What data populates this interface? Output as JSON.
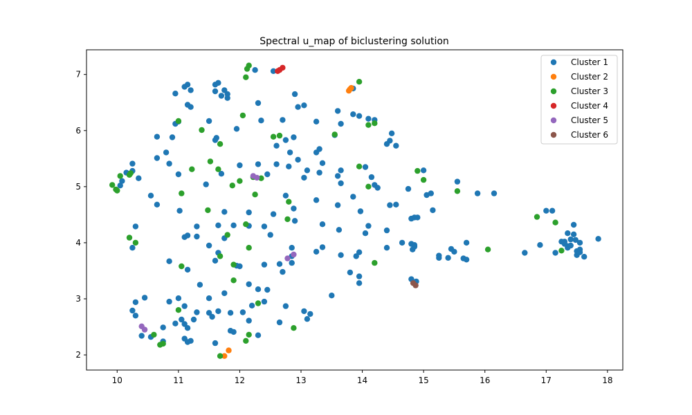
{
  "chart_data": {
    "type": "scatter",
    "title": "Spectral u_map of biclustering solution",
    "xlabel": "",
    "ylabel": "",
    "xlim": [
      9.5,
      18.25
    ],
    "ylim": [
      1.73,
      7.44
    ],
    "xticks": [
      10,
      11,
      12,
      13,
      14,
      15,
      16,
      17,
      18
    ],
    "yticks": [
      2,
      3,
      4,
      5,
      6,
      7
    ],
    "grid": false,
    "legend": "top-right",
    "series": [
      {
        "name": "Cluster 1",
        "color": "#1f77b4",
        "points": [
          [
            11.1,
            6.78
          ],
          [
            11.15,
            6.82
          ],
          [
            11.2,
            6.72
          ],
          [
            11.15,
            6.46
          ],
          [
            11.2,
            6.42
          ],
          [
            10.95,
            6.66
          ],
          [
            11.6,
            6.82
          ],
          [
            11.6,
            6.7
          ],
          [
            11.65,
            6.85
          ],
          [
            11.75,
            6.72
          ],
          [
            11.8,
            6.65
          ],
          [
            11.7,
            6.62
          ],
          [
            11.8,
            6.58
          ],
          [
            12.25,
            7.08
          ],
          [
            12.55,
            7.06
          ],
          [
            12.9,
            6.65
          ],
          [
            12.3,
            6.49
          ],
          [
            13.05,
            6.45
          ],
          [
            12.95,
            6.42
          ],
          [
            13.25,
            6.16
          ],
          [
            11.5,
            6.17
          ],
          [
            11.95,
            6.03
          ],
          [
            12.35,
            6.18
          ],
          [
            12.7,
            6.19
          ],
          [
            11.62,
            5.87
          ],
          [
            11.6,
            5.83
          ],
          [
            10.65,
            5.89
          ],
          [
            10.9,
            5.88
          ],
          [
            10.8,
            5.61
          ],
          [
            11.0,
            6.16
          ],
          [
            10.95,
            6.12
          ],
          [
            10.25,
            5.41
          ],
          [
            10.85,
            5.41
          ],
          [
            10.65,
            5.51
          ],
          [
            11.0,
            5.22
          ],
          [
            10.25,
            5.28
          ],
          [
            10.35,
            5.15
          ],
          [
            10.15,
            5.25
          ],
          [
            10.05,
            5.02
          ],
          [
            10.08,
            5.1
          ],
          [
            11.7,
            5.23
          ],
          [
            12.0,
            5.38
          ],
          [
            12.3,
            5.4
          ],
          [
            12.45,
            5.22
          ],
          [
            12.6,
            5.4
          ],
          [
            12.6,
            5.73
          ],
          [
            12.75,
            5.83
          ],
          [
            12.8,
            5.36
          ],
          [
            12.82,
            5.61
          ],
          [
            12.88,
            5.88
          ],
          [
            12.95,
            5.48
          ],
          [
            13.1,
            5.29
          ],
          [
            13.05,
            5.16
          ],
          [
            13.25,
            5.61
          ],
          [
            13.3,
            5.67
          ],
          [
            13.3,
            5.25
          ],
          [
            13.35,
            5.42
          ],
          [
            13.55,
            5.92
          ],
          [
            13.6,
            6.35
          ],
          [
            13.65,
            6.12
          ],
          [
            13.85,
            6.29
          ],
          [
            13.95,
            6.26
          ],
          [
            14.1,
            6.21
          ],
          [
            14.2,
            6.19
          ],
          [
            13.6,
            5.19
          ],
          [
            13.65,
            5.29
          ],
          [
            13.65,
            5.06
          ],
          [
            14.05,
            5.35
          ],
          [
            14.15,
            5.17
          ],
          [
            14.2,
            5.03
          ],
          [
            14.25,
            4.98
          ],
          [
            13.85,
            4.82
          ],
          [
            14.4,
            5.76
          ],
          [
            14.45,
            5.82
          ],
          [
            14.48,
            5.95
          ],
          [
            14.55,
            5.73
          ],
          [
            14.45,
            4.67
          ],
          [
            14.55,
            4.68
          ],
          [
            14.75,
            4.96
          ],
          [
            14.85,
            4.45
          ],
          [
            14.9,
            4.45
          ],
          [
            14.8,
            4.43
          ],
          [
            15.0,
            5.29
          ],
          [
            15.05,
            4.85
          ],
          [
            15.12,
            4.88
          ],
          [
            15.15,
            4.58
          ],
          [
            15.55,
            5.09
          ],
          [
            15.88,
            4.88
          ],
          [
            16.15,
            4.88
          ],
          [
            11.45,
            5.04
          ],
          [
            10.55,
            4.84
          ],
          [
            10.65,
            4.68
          ],
          [
            11.02,
            4.57
          ],
          [
            11.75,
            4.55
          ],
          [
            12.15,
            4.54
          ],
          [
            12.55,
            4.51
          ],
          [
            12.75,
            4.84
          ],
          [
            12.9,
            4.39
          ],
          [
            12.88,
            4.61
          ],
          [
            13.25,
            4.76
          ],
          [
            13.35,
            4.33
          ],
          [
            13.6,
            4.67
          ],
          [
            13.97,
            4.56
          ],
          [
            14.1,
            4.3
          ],
          [
            14.05,
            4.17
          ],
          [
            14.4,
            4.22
          ],
          [
            13.62,
            4.23
          ],
          [
            11.3,
            4.29
          ],
          [
            10.3,
            4.29
          ],
          [
            11.1,
            4.1
          ],
          [
            11.15,
            4.13
          ],
          [
            11.3,
            4.11
          ],
          [
            11.65,
            4.31
          ],
          [
            11.75,
            4.08
          ],
          [
            11.9,
            4.31
          ],
          [
            12.15,
            4.3
          ],
          [
            12.4,
            4.29
          ],
          [
            12.5,
            4.14
          ],
          [
            11.5,
            3.95
          ],
          [
            11.65,
            3.82
          ],
          [
            11.6,
            3.68
          ],
          [
            12.0,
            3.58
          ],
          [
            12.4,
            3.61
          ],
          [
            12.65,
            3.62
          ],
          [
            12.85,
            3.76
          ],
          [
            12.85,
            3.91
          ],
          [
            12.85,
            3.64
          ],
          [
            12.7,
            3.48
          ],
          [
            13.25,
            3.84
          ],
          [
            13.35,
            3.92
          ],
          [
            13.65,
            3.78
          ],
          [
            13.9,
            3.76
          ],
          [
            13.95,
            3.83
          ],
          [
            14.4,
            3.91
          ],
          [
            14.65,
            4.0
          ],
          [
            14.85,
            3.96
          ],
          [
            14.8,
            3.98
          ],
          [
            14.82,
            3.88
          ],
          [
            14.85,
            3.93
          ],
          [
            15.25,
            3.73
          ],
          [
            15.25,
            3.77
          ],
          [
            15.4,
            3.73
          ],
          [
            15.45,
            3.89
          ],
          [
            15.5,
            3.84
          ],
          [
            15.65,
            3.72
          ],
          [
            15.7,
            3.7
          ],
          [
            15.7,
            4.0
          ],
          [
            10.25,
            3.91
          ],
          [
            10.85,
            3.67
          ],
          [
            11.15,
            3.52
          ],
          [
            11.35,
            3.25
          ],
          [
            11.95,
            3.59
          ],
          [
            11.75,
            3.1
          ],
          [
            12.15,
            3.26
          ],
          [
            12.3,
            3.17
          ],
          [
            12.45,
            3.16
          ],
          [
            11.5,
            3.01
          ],
          [
            11.0,
            3.01
          ],
          [
            10.85,
            2.95
          ],
          [
            10.3,
            2.94
          ],
          [
            10.25,
            2.79
          ],
          [
            10.3,
            2.7
          ],
          [
            10.45,
            3.02
          ],
          [
            11.1,
            2.87
          ],
          [
            11.3,
            2.76
          ],
          [
            11.25,
            2.63
          ],
          [
            11.05,
            2.63
          ],
          [
            10.95,
            2.56
          ],
          [
            11.1,
            2.55
          ],
          [
            11.15,
            2.48
          ],
          [
            11.5,
            2.75
          ],
          [
            11.55,
            2.68
          ],
          [
            11.65,
            2.78
          ],
          [
            11.85,
            2.75
          ],
          [
            12.05,
            2.76
          ],
          [
            12.2,
            2.88
          ],
          [
            12.4,
            2.95
          ],
          [
            12.75,
            2.87
          ],
          [
            12.15,
            2.61
          ],
          [
            12.65,
            2.58
          ],
          [
            13.05,
            2.78
          ],
          [
            13.15,
            2.73
          ],
          [
            13.1,
            2.64
          ],
          [
            13.5,
            3.06
          ],
          [
            13.8,
            3.47
          ],
          [
            13.95,
            3.4
          ],
          [
            13.95,
            3.28
          ],
          [
            14.8,
            3.35
          ],
          [
            14.88,
            3.31
          ],
          [
            10.75,
            2.49
          ],
          [
            10.4,
            2.34
          ],
          [
            10.55,
            2.32
          ],
          [
            10.75,
            2.24
          ],
          [
            11.1,
            2.29
          ],
          [
            11.15,
            2.23
          ],
          [
            11.2,
            2.25
          ],
          [
            11.6,
            2.21
          ],
          [
            11.85,
            2.43
          ],
          [
            11.9,
            2.41
          ],
          [
            12.3,
            2.35
          ],
          [
            16.65,
            3.82
          ],
          [
            16.9,
            3.96
          ],
          [
            17.0,
            4.57
          ],
          [
            17.1,
            4.57
          ],
          [
            17.15,
            3.82
          ],
          [
            17.25,
            4.02
          ],
          [
            17.3,
            3.98
          ],
          [
            17.3,
            4.02
          ],
          [
            17.35,
            3.94
          ],
          [
            17.35,
            4.17
          ],
          [
            17.35,
            3.91
          ],
          [
            17.4,
            3.95
          ],
          [
            17.4,
            4.06
          ],
          [
            17.45,
            4.32
          ],
          [
            17.45,
            4.15
          ],
          [
            17.48,
            4.05
          ],
          [
            17.5,
            3.85
          ],
          [
            17.5,
            3.78
          ],
          [
            17.55,
            3.83
          ],
          [
            17.55,
            3.88
          ],
          [
            17.55,
            4.0
          ],
          [
            17.62,
            3.75
          ],
          [
            17.85,
            4.07
          ],
          [
            13.85,
            6.75
          ]
        ]
      },
      {
        "name": "Cluster 2",
        "color": "#ff7f0e",
        "points": [
          [
            13.78,
            6.71
          ],
          [
            13.8,
            6.74
          ],
          [
            13.82,
            6.76
          ],
          [
            11.75,
            1.98
          ],
          [
            11.82,
            2.08
          ]
        ]
      },
      {
        "name": "Cluster 3",
        "color": "#2ca02c",
        "points": [
          [
            12.15,
            7.16
          ],
          [
            12.12,
            7.1
          ],
          [
            12.1,
            6.95
          ],
          [
            13.95,
            6.87
          ],
          [
            12.05,
            6.27
          ],
          [
            11.0,
            6.17
          ],
          [
            11.38,
            6.01
          ],
          [
            12.55,
            5.89
          ],
          [
            12.65,
            5.91
          ],
          [
            13.55,
            5.93
          ],
          [
            14.1,
            6.1
          ],
          [
            14.2,
            6.13
          ],
          [
            11.68,
            5.76
          ],
          [
            9.92,
            5.03
          ],
          [
            9.98,
            4.95
          ],
          [
            10.0,
            4.93
          ],
          [
            10.05,
            5.19
          ],
          [
            10.2,
            5.21
          ],
          [
            10.22,
            5.24
          ],
          [
            11.22,
            5.31
          ],
          [
            11.52,
            5.45
          ],
          [
            11.65,
            5.31
          ],
          [
            12.22,
            5.17
          ],
          [
            12.35,
            5.15
          ],
          [
            12.0,
            5.1
          ],
          [
            13.95,
            5.36
          ],
          [
            14.9,
            5.28
          ],
          [
            15.0,
            5.12
          ],
          [
            11.05,
            4.88
          ],
          [
            11.88,
            5.02
          ],
          [
            12.25,
            4.86
          ],
          [
            12.8,
            4.73
          ],
          [
            14.1,
            5.0
          ],
          [
            15.55,
            4.92
          ],
          [
            11.48,
            4.58
          ],
          [
            12.1,
            4.33
          ],
          [
            12.78,
            4.42
          ],
          [
            11.8,
            4.14
          ],
          [
            12.15,
            3.91
          ],
          [
            10.2,
            4.09
          ],
          [
            10.3,
            4.0
          ],
          [
            11.68,
            3.76
          ],
          [
            11.9,
            3.61
          ],
          [
            11.05,
            3.58
          ],
          [
            14.2,
            3.64
          ],
          [
            16.05,
            3.88
          ],
          [
            16.85,
            4.46
          ],
          [
            17.15,
            4.36
          ],
          [
            17.25,
            3.86
          ],
          [
            11.9,
            3.33
          ],
          [
            12.3,
            2.92
          ],
          [
            11.0,
            2.8
          ],
          [
            12.88,
            2.48
          ],
          [
            12.1,
            2.25
          ],
          [
            12.15,
            2.36
          ],
          [
            10.6,
            2.36
          ],
          [
            10.7,
            2.18
          ],
          [
            10.75,
            2.2
          ],
          [
            11.68,
            1.98
          ]
        ]
      },
      {
        "name": "Cluster 4",
        "color": "#d62728",
        "points": [
          [
            12.62,
            7.06
          ],
          [
            12.65,
            7.08
          ],
          [
            12.7,
            7.12
          ]
        ]
      },
      {
        "name": "Cluster 5",
        "color": "#9467bd",
        "points": [
          [
            12.22,
            5.19
          ],
          [
            12.28,
            5.16
          ],
          [
            12.78,
            3.72
          ],
          [
            12.88,
            3.79
          ],
          [
            10.4,
            2.51
          ],
          [
            10.45,
            2.45
          ]
        ]
      },
      {
        "name": "Cluster 6",
        "color": "#8c564b",
        "points": [
          [
            14.83,
            3.28
          ],
          [
            14.87,
            3.24
          ]
        ]
      }
    ]
  }
}
